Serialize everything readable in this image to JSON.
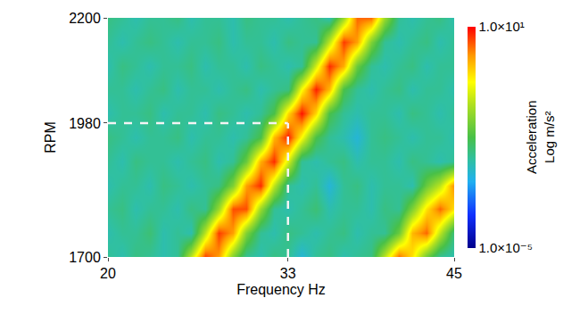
{
  "chart_data": {
    "type": "heatmap",
    "xlabel": "Frequency Hz",
    "ylabel": "RPM",
    "x": [
      20,
      21,
      22,
      23,
      24,
      25,
      26,
      27,
      28,
      29,
      30,
      31,
      32,
      33,
      34,
      35,
      36,
      37,
      38,
      39,
      40,
      41,
      42,
      43,
      44,
      45
    ],
    "y": [
      1700,
      1750,
      1800,
      1850,
      1900,
      1950,
      2000,
      2050,
      2100,
      2150,
      2200
    ],
    "values": [
      [
        0.003,
        0.002,
        0.004,
        0.003,
        0.002,
        0.003,
        0.1,
        5,
        1.5,
        0.03,
        0.003,
        0.002,
        0.004,
        0.003,
        0.001,
        0.003,
        0.004,
        0.002,
        0.003,
        0.004,
        0.1,
        3,
        0.5,
        0.02,
        0.003,
        0.002
      ],
      [
        0.002,
        0.003,
        0.003,
        0.005,
        0.002,
        0.003,
        0.002,
        0.1,
        5,
        1.5,
        0.03,
        0.003,
        0.002,
        0.004,
        0.003,
        0.002,
        0.003,
        0.004,
        0.002,
        0.003,
        0.003,
        0.02,
        1,
        3,
        0.1,
        0.004
      ],
      [
        0.003,
        0.004,
        0.002,
        0.003,
        0.003,
        0.002,
        0.004,
        0.003,
        0.05,
        4,
        4,
        0.05,
        0.003,
        0.002,
        0.003,
        0.005,
        0.002,
        0.003,
        0.003,
        0.002,
        0.004,
        0.003,
        0.03,
        0.5,
        3,
        0.5
      ],
      [
        0.002,
        0.003,
        0.003,
        0.002,
        0.004,
        0.003,
        0.002,
        0.003,
        0.004,
        0.03,
        1.5,
        6,
        0.1,
        0.003,
        0.002,
        0.003,
        0.001,
        0.003,
        0.004,
        0.002,
        0.003,
        0.003,
        0.002,
        0.02,
        0.1,
        2
      ],
      [
        0.003,
        0.002,
        0.004,
        0.003,
        0.003,
        0.002,
        0.003,
        0.004,
        0.002,
        0.003,
        0.02,
        1.2,
        6,
        0.15,
        0.003,
        0.002,
        0.003,
        0.004,
        0.002,
        0.003,
        0.003,
        0.002,
        0.004,
        0.003,
        0.002,
        0.003
      ],
      [
        0.004,
        0.003,
        0.002,
        0.003,
        0.003,
        0.004,
        0.002,
        0.003,
        0.003,
        0.002,
        0.003,
        0.01,
        1,
        7,
        0.3,
        0.01,
        0.003,
        0.002,
        0.001,
        0.003,
        0.004,
        0.003,
        0.002,
        0.003,
        0.003,
        0.002
      ],
      [
        0.002,
        0.003,
        0.003,
        0.004,
        0.002,
        0.003,
        0.003,
        0.002,
        0.004,
        0.003,
        0.002,
        0.003,
        0.01,
        0.6,
        8,
        0.6,
        0.01,
        0.003,
        0.002,
        0.003,
        0.003,
        0.002,
        0.004,
        0.003,
        0.002,
        0.003
      ],
      [
        0.003,
        0.003,
        0.002,
        0.003,
        0.004,
        0.002,
        0.003,
        0.003,
        0.002,
        0.003,
        0.004,
        0.002,
        0.003,
        0.004,
        0.3,
        7,
        1,
        0.01,
        0.003,
        0.002,
        0.003,
        0.004,
        0.002,
        0.003,
        0.003,
        0.002
      ],
      [
        0.002,
        0.004,
        0.003,
        0.002,
        0.003,
        0.003,
        0.004,
        0.002,
        0.003,
        0.003,
        0.002,
        0.004,
        0.003,
        0.002,
        0.003,
        0.15,
        6,
        1.2,
        0.02,
        0.003,
        0.002,
        0.003,
        0.004,
        0.002,
        0.003,
        0.003
      ],
      [
        0.003,
        0.002,
        0.003,
        0.004,
        0.003,
        0.002,
        0.003,
        0.003,
        0.004,
        0.002,
        0.003,
        0.003,
        0.002,
        0.004,
        0.003,
        0.003,
        0.1,
        5,
        1.5,
        0.03,
        0.003,
        0.002,
        0.003,
        0.004,
        0.002,
        0.003
      ],
      [
        0.004,
        0.003,
        0.002,
        0.003,
        0.003,
        0.004,
        0.002,
        0.003,
        0.003,
        0.002,
        0.004,
        0.003,
        0.003,
        0.002,
        0.003,
        0.004,
        0.002,
        0.05,
        3,
        3,
        0.05,
        0.003,
        0.002,
        0.003,
        0.004,
        0.002
      ]
    ],
    "xlim": [
      20,
      45
    ],
    "ylim": [
      1700,
      2200
    ],
    "xticks": [
      20,
      33,
      45
    ],
    "yticks": [
      1700,
      1980,
      2200
    ],
    "reference_point": {
      "x": 33,
      "y": 1980
    },
    "colorbar_title": [
      "Acceleration",
      "Log m/s²"
    ],
    "colorbar_range": [
      1e-05,
      10
    ],
    "colorbar_ticks": [
      {
        "value": 10,
        "label": "1.0×10¹"
      },
      {
        "value": 1e-05,
        "label": "1.0×10⁻⁵"
      }
    ]
  }
}
